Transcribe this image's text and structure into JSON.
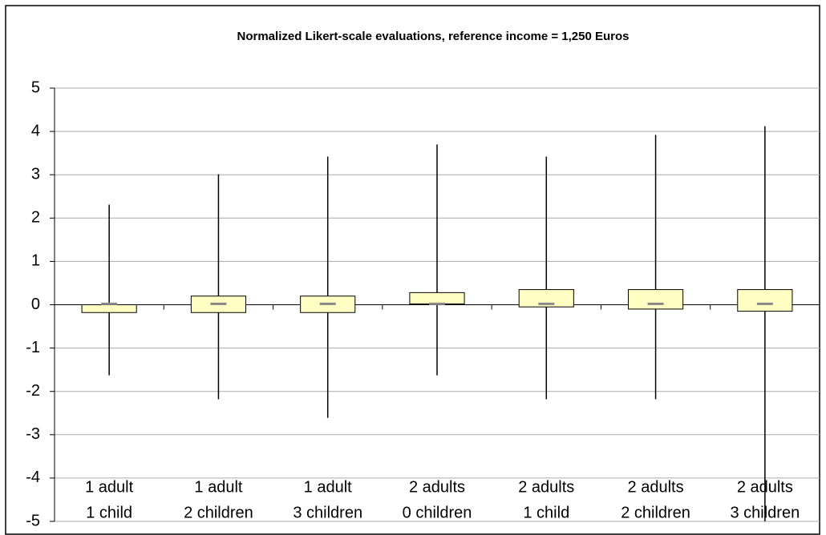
{
  "chart_data": {
    "type": "box",
    "title": "Normalized Likert-scale evaluations, reference income = 1,250 Euros",
    "categories": [
      [
        "1 adult",
        "1 child"
      ],
      [
        "1 adult",
        "2 children"
      ],
      [
        "1 adult",
        "3 children"
      ],
      [
        "2 adults",
        "0 children"
      ],
      [
        "2 adults",
        "1 child"
      ],
      [
        "2 adults",
        "2 children"
      ],
      [
        "2 adults",
        "3 children"
      ]
    ],
    "min": [
      -1.63,
      -2.18,
      -2.61,
      -1.63,
      -2.18,
      -2.18,
      -5
    ],
    "q1": [
      -0.18,
      -0.18,
      -0.18,
      0.02,
      -0.05,
      -0.1,
      -0.15
    ],
    "median": [
      0.02,
      0.02,
      0.02,
      0.02,
      0.02,
      0.02,
      0.02
    ],
    "q3": [
      0,
      0.2,
      0.2,
      0.28,
      0.35,
      0.35,
      0.35
    ],
    "max": [
      2.31,
      3.01,
      3.42,
      3.7,
      3.42,
      3.92,
      4.12
    ],
    "color": "#ffffc4",
    "median_color": "#888888",
    "ylim": [
      -5,
      5
    ],
    "yticks": [
      -5,
      -4,
      -3,
      -2,
      -1,
      0,
      1,
      2,
      3,
      4,
      5
    ],
    "grid": true
  }
}
